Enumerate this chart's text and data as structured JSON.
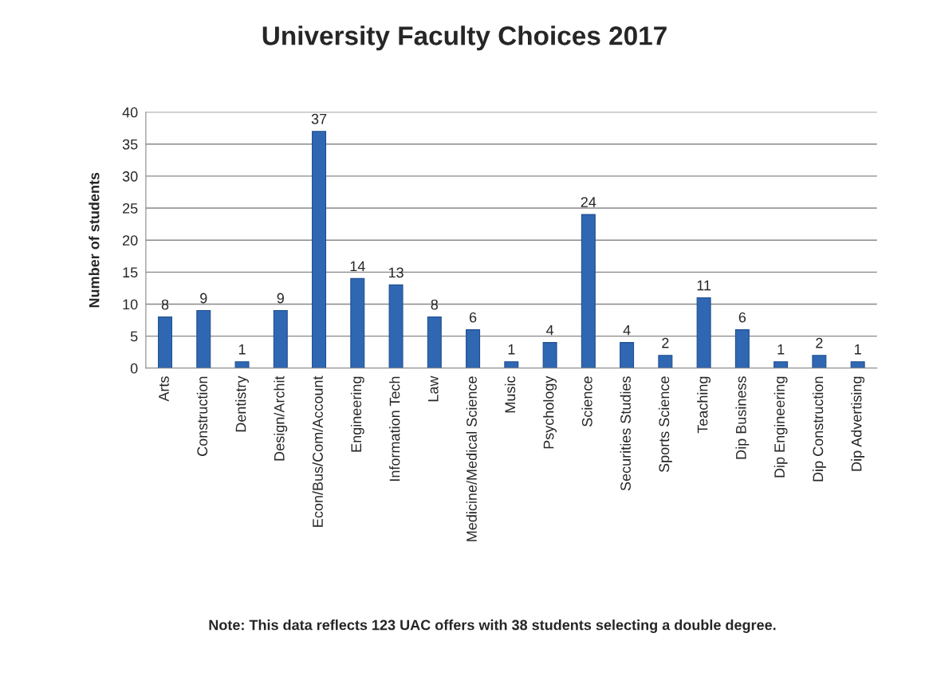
{
  "chart_data": {
    "type": "bar",
    "title": "University Faculty Choices 2017",
    "ylabel": "Number of students",
    "categories": [
      "Arts",
      "Construction",
      "Dentistry",
      "Design/Archit",
      "Econ/Bus/Com/Account",
      "Engineering",
      "Information Tech",
      "Law",
      "Medicine/Medical Science",
      "Music",
      "Psychology",
      "Science",
      "Securities Studies",
      "Sports Science",
      "Teaching",
      "Dip Business",
      "Dip Engineering",
      "Dip Construction",
      "Dip Advertising"
    ],
    "values": [
      8,
      9,
      1,
      9,
      37,
      14,
      13,
      8,
      6,
      1,
      4,
      24,
      4,
      2,
      11,
      6,
      1,
      2,
      1
    ],
    "color": "#2f67b3",
    "ylim": [
      0,
      40
    ],
    "yticks": [
      0,
      5,
      10,
      15,
      20,
      25,
      30,
      35,
      40
    ],
    "grid": "y",
    "data_labels": true,
    "annotations": [
      "Note: This data reflects 123 UAC offers with 38 students selecting a double degree."
    ]
  }
}
